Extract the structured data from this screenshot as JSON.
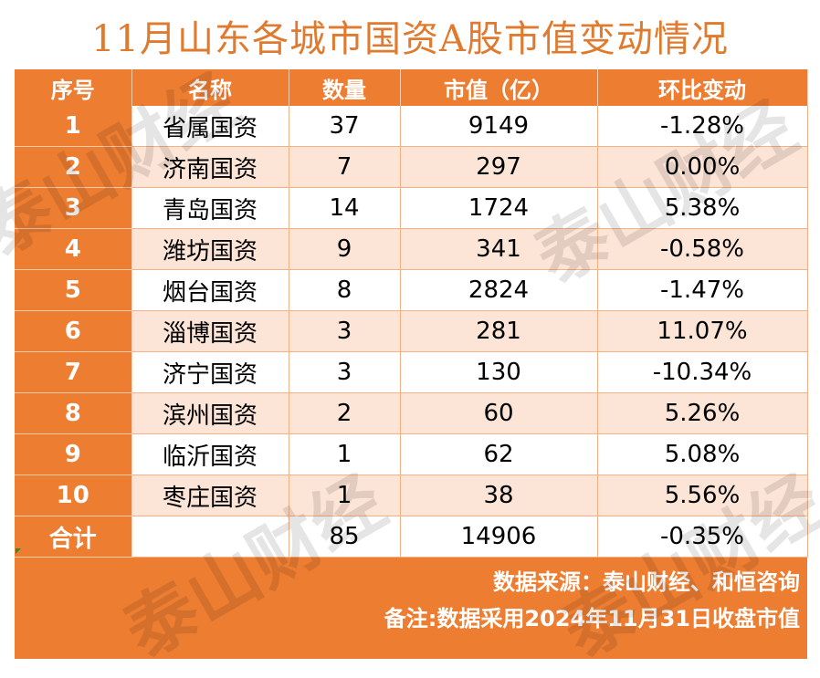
{
  "title": "11月山东各城市国资A股市值变动情况",
  "headers": [
    "序号",
    "名称",
    "数量",
    "市值（亿）",
    "环比变动"
  ],
  "rows": [
    {
      "no": "1",
      "name": "省属国资",
      "count": "37",
      "value": "9149",
      "change": "-1.28%"
    },
    {
      "no": "2",
      "name": "济南国资",
      "count": "7",
      "value": "297",
      "change": "0.00%"
    },
    {
      "no": "3",
      "name": "青岛国资",
      "count": "14",
      "value": "1724",
      "change": "5.38%"
    },
    {
      "no": "4",
      "name": "潍坊国资",
      "count": "9",
      "value": "341",
      "change": "-0.58%"
    },
    {
      "no": "5",
      "name": "烟台国资",
      "count": "8",
      "value": "2824",
      "change": "-1.47%"
    },
    {
      "no": "6",
      "name": "淄博国资",
      "count": "3",
      "value": "281",
      "change": "11.07%"
    },
    {
      "no": "7",
      "name": "济宁国资",
      "count": "3",
      "value": "130",
      "change": "-10.34%"
    },
    {
      "no": "8",
      "name": "滨州国资",
      "count": "2",
      "value": "60",
      "change": "5.26%"
    },
    {
      "no": "9",
      "name": "临沂国资",
      "count": "1",
      "value": "62",
      "change": "5.08%"
    },
    {
      "no": "10",
      "name": "枣庄国资",
      "count": "1",
      "value": "38",
      "change": "5.56%"
    }
  ],
  "total": {
    "label": "合计",
    "name": "",
    "count": "85",
    "value": "14906",
    "change": "-0.35%"
  },
  "footer": {
    "source": "数据来源：泰山财经、和恒咨询",
    "note": "备注:数据采用2024年11月31日收盘市值"
  },
  "watermark": "泰山财经",
  "colors": {
    "accent": "#ED7D31",
    "title": "#E07A2E",
    "stripe": "#FCE4D6"
  }
}
